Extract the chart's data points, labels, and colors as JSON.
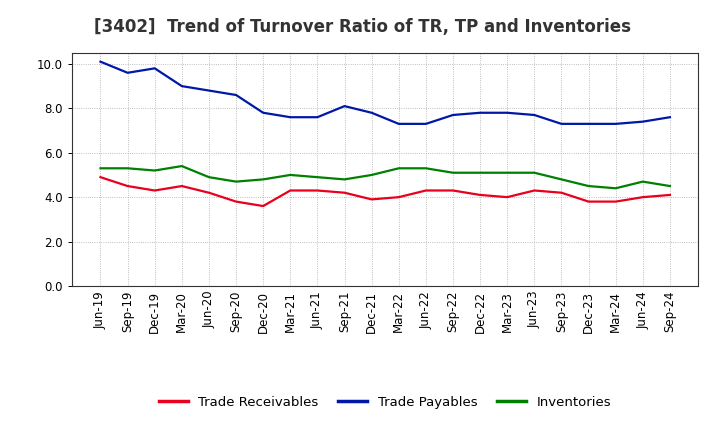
{
  "title": "[3402]  Trend of Turnover Ratio of TR, TP and Inventories",
  "x_labels": [
    "Jun-19",
    "Sep-19",
    "Dec-19",
    "Mar-20",
    "Jun-20",
    "Sep-20",
    "Dec-20",
    "Mar-21",
    "Jun-21",
    "Sep-21",
    "Dec-21",
    "Mar-22",
    "Jun-22",
    "Sep-22",
    "Dec-22",
    "Mar-23",
    "Jun-23",
    "Sep-23",
    "Dec-23",
    "Mar-24",
    "Jun-24",
    "Sep-24"
  ],
  "trade_receivables": [
    4.9,
    4.5,
    4.3,
    4.5,
    4.2,
    3.8,
    3.6,
    4.3,
    4.3,
    4.2,
    3.9,
    4.0,
    4.3,
    4.3,
    4.1,
    4.0,
    4.3,
    4.2,
    3.8,
    3.8,
    4.0,
    4.1
  ],
  "trade_payables": [
    10.1,
    9.6,
    9.8,
    9.0,
    8.8,
    8.6,
    7.8,
    7.6,
    7.6,
    8.1,
    7.8,
    7.3,
    7.3,
    7.7,
    7.8,
    7.8,
    7.7,
    7.3,
    7.3,
    7.3,
    7.4,
    7.6
  ],
  "inventories": [
    5.3,
    5.3,
    5.2,
    5.4,
    4.9,
    4.7,
    4.8,
    5.0,
    4.9,
    4.8,
    5.0,
    5.3,
    5.3,
    5.1,
    5.1,
    5.1,
    5.1,
    4.8,
    4.5,
    4.4,
    4.7,
    4.5
  ],
  "tr_color": "#e8001c",
  "tp_color": "#0018a8",
  "inv_color": "#008000",
  "ylim": [
    0.0,
    10.5
  ],
  "yticks": [
    0.0,
    2.0,
    4.0,
    6.0,
    8.0,
    10.0
  ],
  "background_color": "#ffffff",
  "grid_color": "#aaaaaa",
  "legend_labels": [
    "Trade Receivables",
    "Trade Payables",
    "Inventories"
  ],
  "title_fontsize": 12,
  "axis_fontsize": 8.5,
  "legend_fontsize": 9.5
}
